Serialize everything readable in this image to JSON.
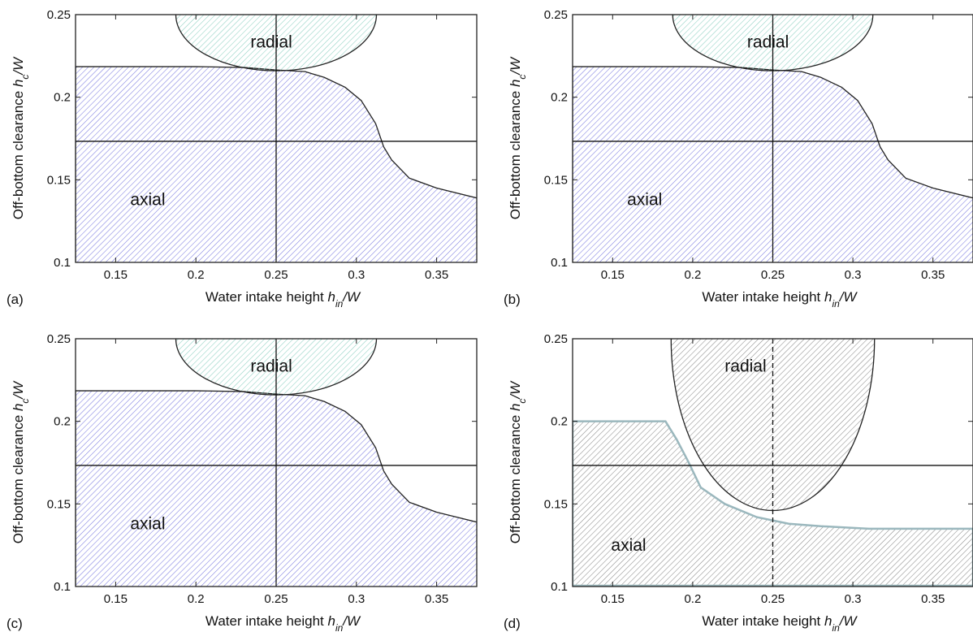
{
  "chart_data": [
    {
      "type": "area",
      "panel_label": "(a)",
      "xlabel": "Water intake height h_in/W",
      "ylabel": "Off-bottom clearance h_c/W",
      "xlim": [
        0.125,
        0.375
      ],
      "ylim": [
        0.1,
        0.25
      ],
      "x_ticks": [
        0.15,
        0.2,
        0.25,
        0.3,
        0.35
      ],
      "y_ticks": [
        0.1,
        0.15,
        0.2,
        0.25
      ],
      "x_tick_labels": [
        "0.15",
        "0.2",
        "0.25",
        "0.3",
        "0.35"
      ],
      "y_tick_labels": [
        "0.1",
        "0.15",
        "0.2",
        "0.25"
      ],
      "ref_lines": {
        "x": 0.25,
        "y": 0.1733,
        "x_style": "solid"
      },
      "regions": [
        {
          "label": "axial",
          "label_pos": [
            0.17,
            0.138
          ],
          "color": "#7b7be0",
          "boundary": [
            [
              0.125,
              0.2185
            ],
            [
              0.15,
              0.2185
            ],
            [
              0.2,
              0.2185
            ],
            [
              0.23,
              0.218
            ],
            [
              0.25,
              0.2165
            ],
            [
              0.268,
              0.2155
            ],
            [
              0.28,
              0.212
            ],
            [
              0.293,
              0.206
            ],
            [
              0.303,
              0.198
            ],
            [
              0.312,
              0.184
            ],
            [
              0.317,
              0.17
            ],
            [
              0.322,
              0.162
            ],
            [
              0.333,
              0.151
            ],
            [
              0.35,
              0.145
            ],
            [
              0.375,
              0.139
            ]
          ]
        },
        {
          "label": "radial",
          "label_pos": [
            0.247,
            0.2335
          ],
          "color": "#8ccfc1",
          "ellipse": {
            "cx": 0.25,
            "cy": 0.25,
            "rx": 0.0625,
            "ry": 0.034
          }
        }
      ]
    },
    {
      "type": "area",
      "panel_label": "(b)",
      "xlabel": "Water intake height h_in/W",
      "ylabel": "Off-bottom clearance h_c/W",
      "xlim": [
        0.125,
        0.375
      ],
      "ylim": [
        0.1,
        0.25
      ],
      "x_ticks": [
        0.15,
        0.2,
        0.25,
        0.3,
        0.35
      ],
      "y_ticks": [
        0.1,
        0.15,
        0.2,
        0.25
      ],
      "x_tick_labels": [
        "0.15",
        "0.2",
        "0.25",
        "0.3",
        "0.35"
      ],
      "y_tick_labels": [
        "0.1",
        "0.15",
        "0.2",
        "0.25"
      ],
      "ref_lines": {
        "x": 0.25,
        "y": 0.1733,
        "x_style": "solid"
      },
      "regions": [
        {
          "label": "axial",
          "label_pos": [
            0.17,
            0.138
          ],
          "color": "#7b7be0",
          "boundary": [
            [
              0.125,
              0.2185
            ],
            [
              0.15,
              0.2185
            ],
            [
              0.2,
              0.2185
            ],
            [
              0.23,
              0.218
            ],
            [
              0.25,
              0.2165
            ],
            [
              0.268,
              0.2155
            ],
            [
              0.28,
              0.212
            ],
            [
              0.293,
              0.206
            ],
            [
              0.303,
              0.198
            ],
            [
              0.312,
              0.184
            ],
            [
              0.317,
              0.17
            ],
            [
              0.322,
              0.162
            ],
            [
              0.333,
              0.151
            ],
            [
              0.35,
              0.145
            ],
            [
              0.375,
              0.139
            ]
          ]
        },
        {
          "label": "radial",
          "label_pos": [
            0.247,
            0.2335
          ],
          "color": "#8ccfc1",
          "ellipse": {
            "cx": 0.25,
            "cy": 0.25,
            "rx": 0.0625,
            "ry": 0.034
          }
        }
      ]
    },
    {
      "type": "area",
      "panel_label": "(c)",
      "xlabel": "Water intake height h_in/W",
      "ylabel": "Off-bottom clearance h_c/W",
      "xlim": [
        0.125,
        0.375
      ],
      "ylim": [
        0.1,
        0.25
      ],
      "x_ticks": [
        0.15,
        0.2,
        0.25,
        0.3,
        0.35
      ],
      "y_ticks": [
        0.1,
        0.15,
        0.2,
        0.25
      ],
      "x_tick_labels": [
        "0.15",
        "0.2",
        "0.25",
        "0.3",
        "0.35"
      ],
      "y_tick_labels": [
        "0.1",
        "0.15",
        "0.2",
        "0.25"
      ],
      "ref_lines": {
        "x": 0.25,
        "y": 0.1733,
        "x_style": "solid"
      },
      "regions": [
        {
          "label": "axial",
          "label_pos": [
            0.17,
            0.138
          ],
          "color": "#7b7be0",
          "boundary": [
            [
              0.125,
              0.2185
            ],
            [
              0.15,
              0.2185
            ],
            [
              0.2,
              0.2185
            ],
            [
              0.23,
              0.218
            ],
            [
              0.25,
              0.2165
            ],
            [
              0.268,
              0.2155
            ],
            [
              0.28,
              0.212
            ],
            [
              0.293,
              0.206
            ],
            [
              0.303,
              0.198
            ],
            [
              0.312,
              0.184
            ],
            [
              0.317,
              0.17
            ],
            [
              0.322,
              0.162
            ],
            [
              0.333,
              0.151
            ],
            [
              0.35,
              0.145
            ],
            [
              0.375,
              0.139
            ]
          ]
        },
        {
          "label": "radial",
          "label_pos": [
            0.247,
            0.2335
          ],
          "color": "#8ccfc1",
          "ellipse": {
            "cx": 0.25,
            "cy": 0.25,
            "rx": 0.0625,
            "ry": 0.034
          }
        }
      ]
    },
    {
      "type": "area",
      "panel_label": "(d)",
      "xlabel": "Water intake height h_in/W",
      "ylabel": "Off-bottom clearance h_c/W",
      "xlim": [
        0.125,
        0.375
      ],
      "ylim": [
        0.1,
        0.25
      ],
      "x_ticks": [
        0.15,
        0.2,
        0.25,
        0.3,
        0.35
      ],
      "y_ticks": [
        0.1,
        0.15,
        0.2,
        0.25
      ],
      "x_tick_labels": [
        "0.15",
        "0.2",
        "0.25",
        "0.3",
        "0.35"
      ],
      "y_tick_labels": [
        "0.1",
        "0.15",
        "0.2",
        "0.25"
      ],
      "ref_lines": {
        "x": 0.25,
        "y": 0.1733,
        "x_style": "dashed"
      },
      "regions": [
        {
          "label": "axial",
          "label_pos": [
            0.16,
            0.125
          ],
          "color": "#8a8a8a",
          "outline": "#9ab7bd",
          "boundary": [
            [
              0.125,
              0.2
            ],
            [
              0.183,
              0.2
            ],
            [
              0.19,
              0.189
            ],
            [
              0.197,
              0.176
            ],
            [
              0.205,
              0.16
            ],
            [
              0.22,
              0.15
            ],
            [
              0.24,
              0.142
            ],
            [
              0.26,
              0.138
            ],
            [
              0.28,
              0.1365
            ],
            [
              0.31,
              0.135
            ],
            [
              0.375,
              0.135
            ]
          ]
        },
        {
          "label": "radial",
          "label_pos": [
            0.233,
            0.2335
          ],
          "color": "#8a8a8a",
          "ellipse": {
            "cx": 0.25,
            "cy": 0.25,
            "rx": 0.0635,
            "ry": 0.104
          }
        }
      ]
    }
  ]
}
